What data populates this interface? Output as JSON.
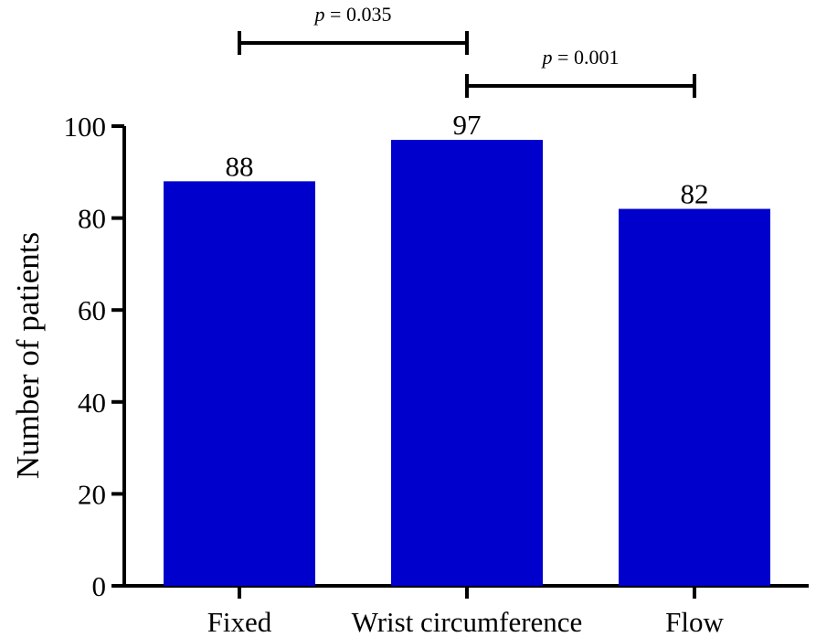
{
  "chart_data": {
    "type": "bar",
    "title": "",
    "xlabel": "",
    "ylabel": "Number of patients",
    "categories": [
      "Fixed",
      "Wrist circumference",
      "Flow"
    ],
    "values": [
      88,
      97,
      82
    ],
    "data_labels": [
      "88",
      "97",
      "82"
    ],
    "ylim": [
      0,
      100
    ],
    "yticks": [
      0,
      20,
      40,
      60,
      80,
      100
    ],
    "ytick_labels": [
      "0",
      "20",
      "40",
      "60",
      "80",
      "100"
    ],
    "grid": false,
    "bar_color": "#0000CC",
    "significance": [
      {
        "from": "Fixed",
        "to": "Wrist circumference",
        "p_symbol": "p",
        "p_text": " = 0.035",
        "level": 2
      },
      {
        "from": "Wrist circumference",
        "to": "Flow",
        "p_symbol": "p",
        "p_text": " = 0.001",
        "level": 1
      }
    ]
  }
}
